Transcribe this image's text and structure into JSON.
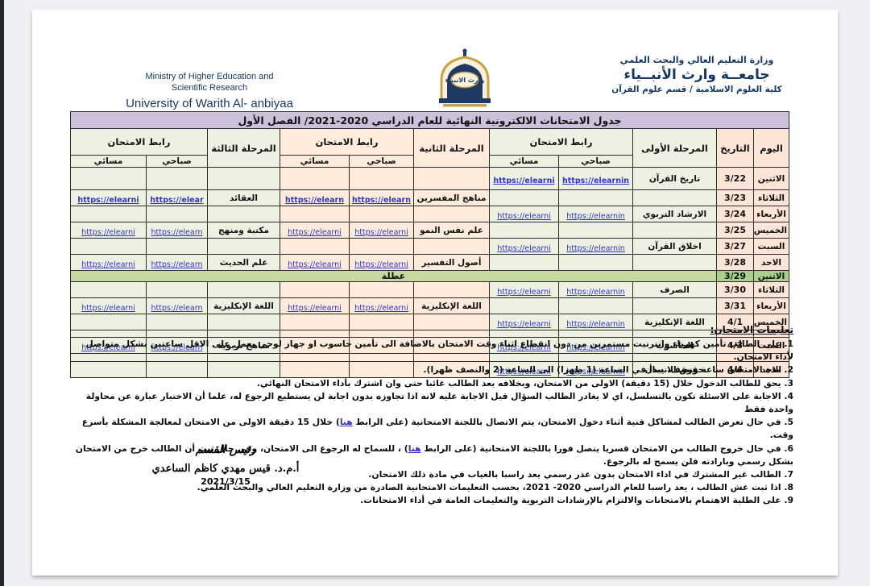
{
  "colors": {
    "navy": "#17365d",
    "lavender": "#ccc0da",
    "peach": "#fbe5d6",
    "peach2": "#fdebdc",
    "green": "#ecf1e2",
    "holiday": "#a9d08e",
    "holiday2": "#c6d9a0",
    "link": "#3333cc"
  },
  "page_header": {
    "english": [
      "Ministry of Higher Education and",
      "Scientific Research",
      "University of Warith Al- anbiyaa"
    ],
    "arabic": [
      "وزارة التعليم العالي والبحث العلمي",
      "جامعــة وارث الأنبــياء",
      "كلية العلوم الاسلامية / قسم علوم القرآن"
    ],
    "logo": "university-warith-alanbiyaa-emblem"
  },
  "table": {
    "title": "جدول الامتحانات الالكترونية النهائية للعام الدراسي 2020-2021/ الفصل الأول",
    "headers": {
      "day": "اليوم",
      "date": "التاريخ",
      "stage1": "المرحلة الأولى",
      "stage2": "المرحلة الثانية",
      "stage3": "المرحلة الثالثة",
      "exam_link": "رابط الامتحان",
      "morning": "صباحي",
      "evening": "مسائي"
    },
    "rows": [
      {
        "day": "الاثنين",
        "date": "3/22",
        "h": 28,
        "s1": {
          "name": "تاريخ القرآن",
          "am": "https://elearnin",
          "pm": "https://elearni",
          "bold": true
        }
      },
      {
        "day": "الثلاثاء",
        "date": "3/23",
        "h": 11,
        "s2": {
          "name": "مناهج المفسرين",
          "am": "https://elearn",
          "pm": "https://elearn",
          "bold": true
        },
        "s3": {
          "name": "العقائد",
          "am": "https://elear",
          "pm": "https://elearni",
          "bold": true
        }
      },
      {
        "day": "الأربعاء",
        "date": "3/24",
        "h": 11,
        "s1": {
          "name": "الارشاد التربوي",
          "am": "https://elearnin",
          "pm": "https://elearni"
        }
      },
      {
        "day": "الخميس",
        "date": "3/25",
        "h": 11,
        "s2": {
          "name": "علم نفس النمو",
          "am": "https://elearni",
          "pm": "https://elearni"
        },
        "s3": {
          "name": "مكتبة ومنهج",
          "am": "https://elearn",
          "pm": "https://elearni"
        }
      },
      {
        "day": "السبت",
        "date": "3/27",
        "h": 11,
        "s1": {
          "name": "اخلاق القرآن",
          "am": "https://elearnin",
          "pm": "https://elearni"
        }
      },
      {
        "day": "الاحد",
        "date": "3/28",
        "h": 11,
        "s2": {
          "name": "أصول التفسير",
          "am": "https://elearni",
          "pm": "https://elearni"
        },
        "s3": {
          "name": "علم الحديث",
          "am": "https://elearn",
          "pm": "https://elearni"
        }
      },
      {
        "day": "الاثنين",
        "date": "3/29",
        "h": 12,
        "holiday": true,
        "label": "عطلة"
      },
      {
        "day": "الثلاثاء",
        "date": "3/30",
        "h": 11,
        "s1": {
          "name": "الصرف",
          "am": "https://elearnin",
          "pm": "https://elearni"
        }
      },
      {
        "day": "الأربعاء",
        "date": "3/31",
        "h": 11,
        "s2": {
          "name": "اللغة الإنكليزية",
          "am": "https://elearni",
          "pm": "https://elearni"
        },
        "s3": {
          "name": "اللغة الإنكليزية",
          "am": "https://elearn",
          "pm": "https://elearni"
        }
      },
      {
        "day": "الخميس",
        "date": "4/1",
        "h": 16,
        "s1": {
          "name": "اللغة الإنكليزية",
          "am": "https://elearnin",
          "pm": "https://elearni"
        }
      },
      {
        "day": "",
        "date": "",
        "h": 9,
        "spacer": true
      },
      {
        "day": "السبت",
        "date": "4/3",
        "h": 14,
        "s1": {
          "name": "الحاسوب",
          "am": "https://elearnin",
          "pm": "https://elearni"
        },
        "s3": {
          "name": "مناهج تربوية",
          "am": "https://elearn",
          "pm": "https://elearni"
        }
      },
      {
        "day": "",
        "date": "",
        "h": 10,
        "spacer": true
      },
      {
        "day": "الاحد",
        "date": "4/4",
        "h": 13,
        "s1": {
          "name": "حقوق الانسان",
          "am": "https://elearnin",
          "pm": "https://elearni"
        }
      }
    ]
  },
  "instructions": {
    "heading": "تعليمات الامتحان:",
    "items": [
      [
        {
          "text": "على الطالب تأمين كهرباء وانترنيت مستمرين من دون انقطاع اثناء وقت الامتحان بالاضافة الى تأمين حاسوب او جهاز لوحي يعمل على الاقل ساعتين بشكل متواصل لأداء الامتحان."
        }
      ],
      [
        {
          "text": "مدة الامتحان ساعة ونصف، يبدأ في الساعة (1 ظهرا) الى الساعة (2 والنصف ظهرا)."
        }
      ],
      [
        {
          "text": "يحق للطالب الدخول خلال ("
        },
        {
          "text": "15 دقيقة",
          "style": "bold"
        },
        {
          "text": ") الاولى من الامتحان، وبخلافه يعد الطالب غائبا حتى وان اشترك بأداء الامتحان النهائي."
        }
      ],
      [
        {
          "text": "الاجابة على الاسئلة تكون بالتسلسل، اي لا يغادر الطالب السؤال قبل الاجابة عليه لانه اذا تجاوزه بدون اجابة لن يستطيع الرجوع له، علما أن الاختبار عبارة عن محاولة واحدة فقط"
        }
      ],
      [
        {
          "text": "في حال تعرض الطالب لمشاكل فنية أثناء دخول الامتحان، يتم الاتصال باللجنة الامتحانية (على الرابط "
        },
        {
          "text": "هنا",
          "style": "link"
        },
        {
          "text": ") خلال "
        },
        {
          "text": "15",
          "style": "bold"
        },
        {
          "text": " دقيقة الاولى من الامتحان لمعالجة المشكلة بأسرع وقت."
        }
      ],
      [
        {
          "text": "في حال خروج الطالب من الامتحان قسريا يتصل فورا باللجنة الامتحانية (على الرابط "
        },
        {
          "text": "هنا",
          "style": "link"
        },
        {
          "text": ") ، للسماح له الرجوع الى الامتحان، وفي حال ثبت أن الطالب خرج من الامتحان بشكل رسمي وبارادته فلن يسمح له بالرجوع."
        }
      ],
      [
        {
          "text": "الطالب غير المشترك في اداء الامتحان بدون عذر رسمي يعد راسبا بالغياب في مادة ذلك الامتحان."
        }
      ],
      [
        {
          "text": "اذا ثبت غش الطالب ، يعد راسبا للعام الدراسي "
        },
        {
          "text": "2020- 2021",
          "style": "bold"
        },
        {
          "text": "، بحسب التعليمات الامتحانية الصادرة من وزارة التعليم العالي والبحث العلمي."
        }
      ],
      [
        {
          "text": "على الطلبة الاهتمام بالامتحانات والالتزام بالإرشادات التربوية والتعليمات العامة في أداء الامتحانات."
        }
      ]
    ]
  },
  "signature": {
    "role": "رئيس القسم",
    "name": "أ.م.د. قيس مهدي كاظم الساعدي",
    "date": "2021/3/15"
  }
}
